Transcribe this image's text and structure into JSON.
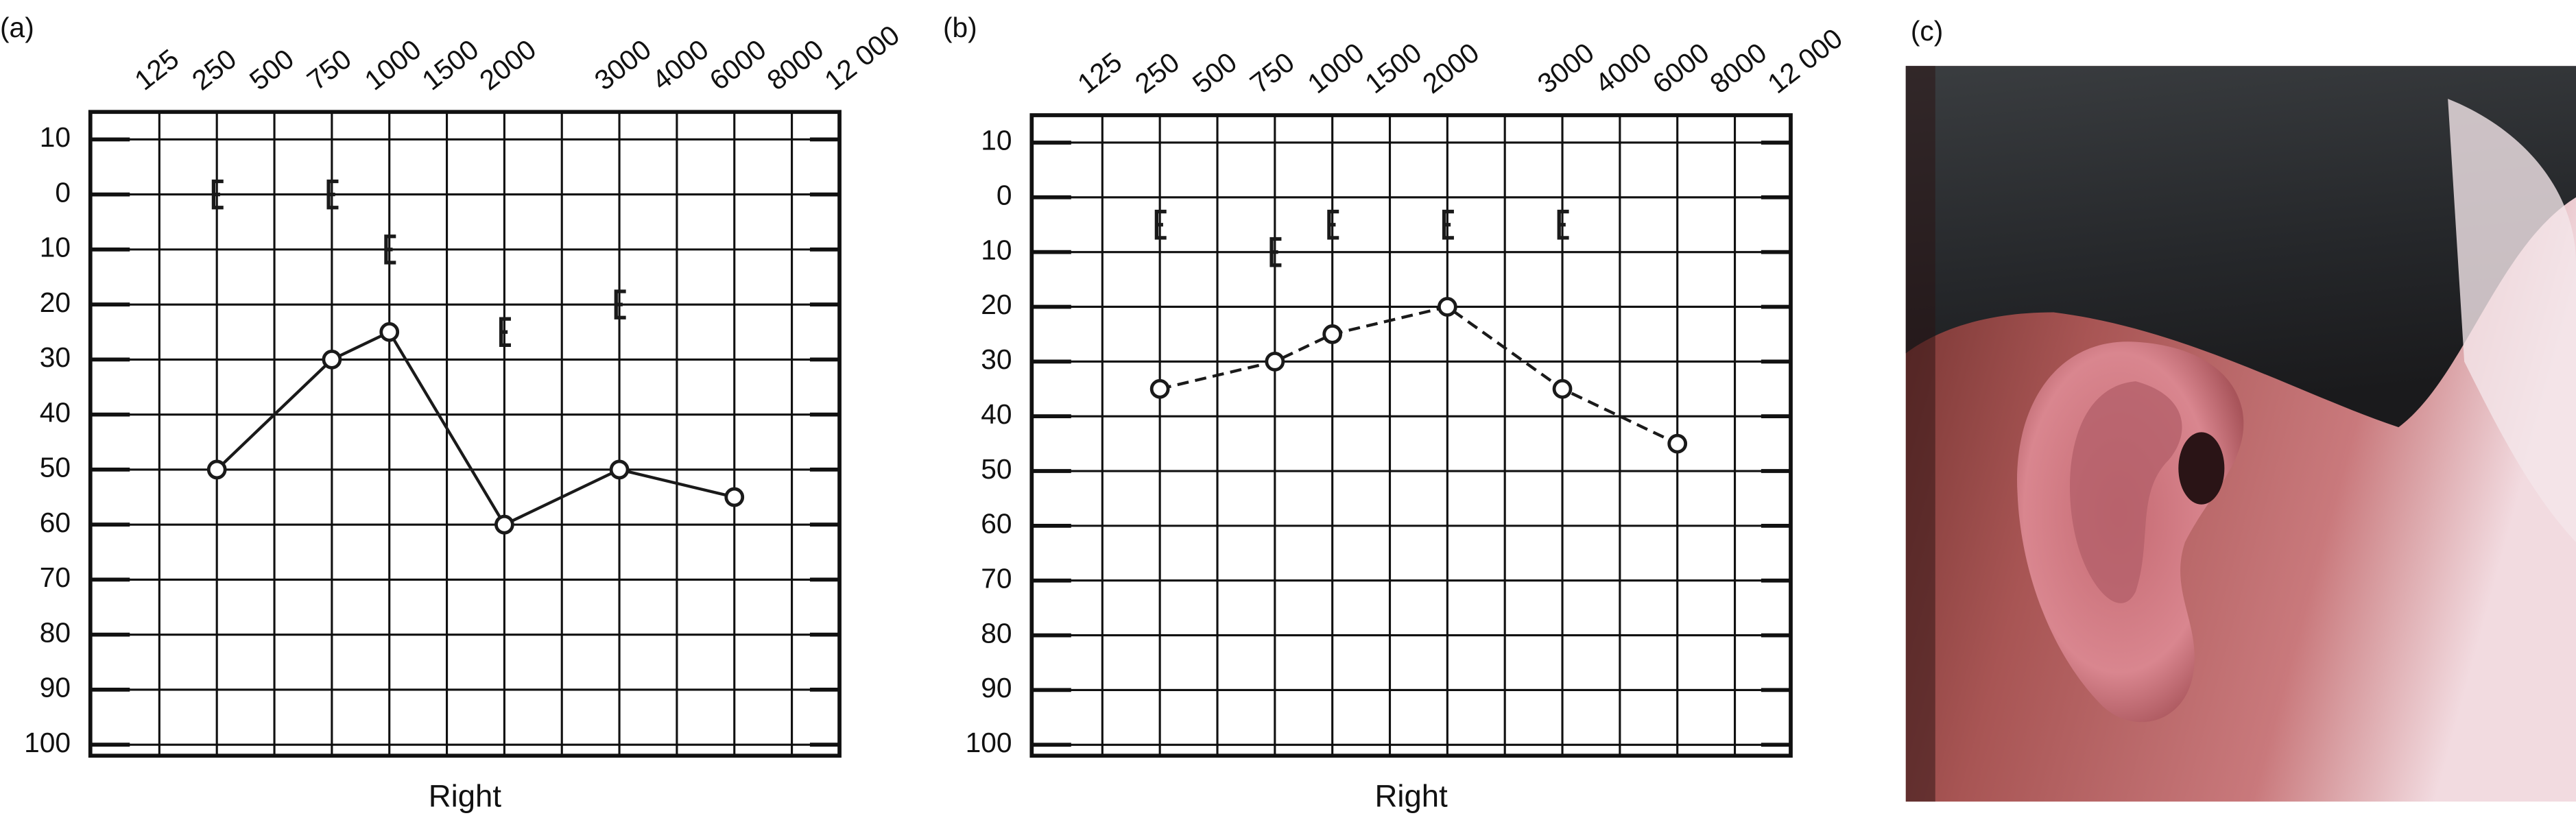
{
  "chart_data": [
    {
      "type": "line",
      "label": "(a)",
      "xlabel": "Right",
      "categories": [
        "125",
        "250",
        "500",
        "750",
        "1000",
        "1500",
        "2000",
        null,
        "3000",
        "4000",
        "6000",
        "8000",
        "12 000"
      ],
      "ylim": [
        -15,
        102
      ],
      "y_reversed": true,
      "yticks": [
        {
          "value": -10,
          "label": "10"
        },
        0,
        10,
        20,
        30,
        40,
        50,
        60,
        70,
        80,
        90,
        100
      ],
      "grid": true,
      "series": [
        {
          "x": [
            "250",
            "750",
            "1000",
            "2000",
            "3000",
            "6000"
          ],
          "values": [
            50,
            30,
            25,
            60,
            50,
            55
          ],
          "marker": "circle",
          "line": "solid",
          "color": "#1a1a1a"
        },
        {
          "x": [
            "250",
            "750",
            "1000",
            "2000",
            "3000"
          ],
          "values": [
            0,
            0,
            10,
            25,
            20
          ],
          "marker": "bracket",
          "line": "none",
          "color": "#1a1a1a"
        }
      ]
    },
    {
      "type": "line",
      "label": "(b)",
      "xlabel": "Right",
      "categories": [
        "125",
        "250",
        "500",
        "750",
        "1000",
        "1500",
        "2000",
        null,
        "3000",
        "4000",
        "6000",
        "8000",
        "12 000"
      ],
      "ylim": [
        -15,
        102
      ],
      "y_reversed": true,
      "yticks": [
        {
          "value": -10,
          "label": "10"
        },
        0,
        10,
        20,
        30,
        40,
        50,
        60,
        70,
        80,
        90,
        100
      ],
      "grid": true,
      "series": [
        {
          "x": [
            "250",
            "750",
            "1000",
            "2000",
            "3000",
            "6000"
          ],
          "values": [
            35,
            30,
            25,
            20,
            35,
            45
          ],
          "marker": "circle",
          "line": "dashed",
          "color": "#1a1a1a"
        },
        {
          "x": [
            "250",
            "750",
            "1000",
            "2000",
            "3000"
          ],
          "values": [
            5,
            10,
            5,
            5,
            5
          ],
          "marker": "bracket",
          "line": "none",
          "color": "#1a1a1a"
        }
      ]
    }
  ],
  "photo": {
    "label": "(c)"
  }
}
